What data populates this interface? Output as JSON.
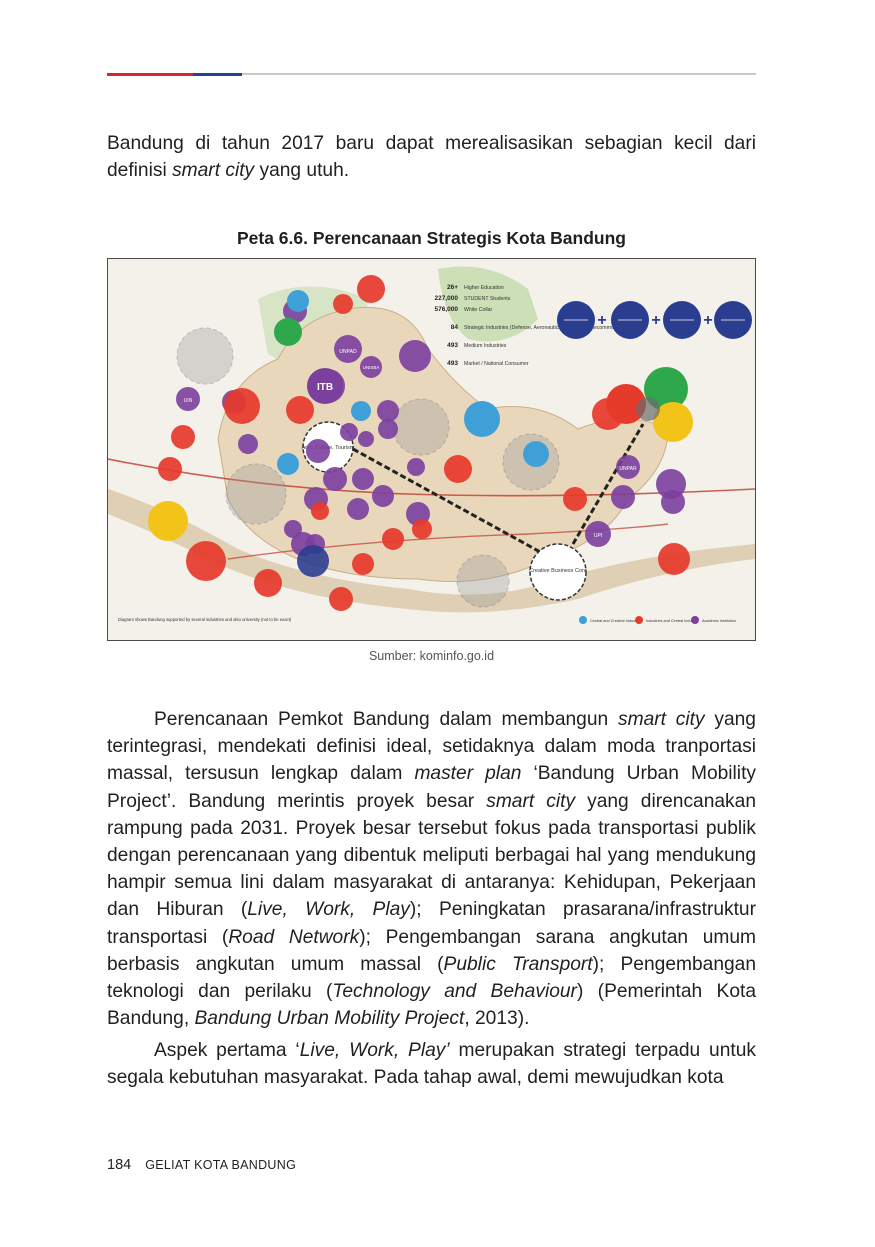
{
  "page": {
    "intro_paragraph": [
      {
        "t": "Bandung di tahun 2017 baru dapat merealisasikan sebagian kecil dari definisi ",
        "i": false
      },
      {
        "t": "smart city",
        "i": true
      },
      {
        "t": " yang utuh.",
        "i": false
      }
    ],
    "figure_caption": "Peta 6.6. Perencanaan Strategis Kota Bandung",
    "figure_source": "Sumber: kominfo.go.id",
    "paragraph_2": [
      {
        "t": "Perencanaan Pemkot Bandung dalam membangun ",
        "i": false
      },
      {
        "t": "smart city",
        "i": true
      },
      {
        "t": " yang terintegrasi, mendekati definisi ideal, setidaknya dalam moda tranportasi massal, tersusun lengkap dalam ",
        "i": false
      },
      {
        "t": "master plan",
        "i": true
      },
      {
        "t": " ‘Bandung Urban Mobility Project’. Bandung merintis proyek besar ",
        "i": false
      },
      {
        "t": "smart city",
        "i": true
      },
      {
        "t": " yang direncanakan rampung pada 2031. Proyek besar tersebut fokus pada transportasi publik dengan perencanaan yang dibentuk meliputi berbagai hal yang mendukung hampir semua lini dalam masyarakat di antaranya: Kehidupan, Pekerjaan dan Hiburan (",
        "i": false
      },
      {
        "t": "Live, Work, Play",
        "i": true
      },
      {
        "t": "); Peningkatan prasarana/infrastruktur transportasi (",
        "i": false
      },
      {
        "t": "Road Network",
        "i": true
      },
      {
        "t": "); Pengembangan sarana angkutan umum berbasis angkutan umum massal (",
        "i": false
      },
      {
        "t": "Public Transport",
        "i": true
      },
      {
        "t": "); Pengembangan teknologi dan perilaku (",
        "i": false
      },
      {
        "t": "Technology and Behaviour",
        "i": true
      },
      {
        "t": ") (Pemerintah Kota Bandung, ",
        "i": false
      },
      {
        "t": "Bandung Urban Mobility Project",
        "i": true
      },
      {
        "t": ", 2013).",
        "i": false
      }
    ],
    "paragraph_3": [
      {
        "t": "Aspek pertama ‘",
        "i": false
      },
      {
        "t": "Live, Work, Play’",
        "i": true
      },
      {
        "t": " merupakan strategi terpadu untuk segala kebutuhan masyarakat. Pada tahap awal, demi mewujudkan kota",
        "i": false
      }
    ],
    "footer": {
      "page_number": "184",
      "book_title": "GELIAT KOTA BANDUNG"
    }
  },
  "map": {
    "colors": {
      "academic": "#7b3f9e",
      "industry": "#e63a2b",
      "creative": "#3fa0d8",
      "green": "#2ea84a",
      "yellow": "#f2c41a",
      "navy": "#2b3d8f",
      "city": "#e9d7bc",
      "hills": "#bcd7a0"
    },
    "stats": [
      {
        "value": "26+",
        "label": "Higher Education"
      },
      {
        "value": "227,000",
        "label": "STUDENT Students"
      },
      {
        "value": "576,000",
        "label": "White Collar"
      },
      {
        "value": "84",
        "label": "Strategic Industries (Defense, Aeronautical, Defense, Telecommunication, etc.)"
      },
      {
        "value": "493",
        "label": "Medium Industries"
      },
      {
        "value": "493",
        "label": "Market / National Consumer"
      }
    ],
    "center_labels": {
      "arts": "Arts, Culture, Tourism",
      "creative_business": "Creative Business Core",
      "itb": "ITB",
      "unpad": "UNPAD",
      "unisba": "UNISBA",
      "unpar": "UNPAR",
      "upi": "UPI",
      "uin": "UIN"
    },
    "footnote": "Diagram shows Bandung supported by several industries and also university (not to be exact)",
    "legend": [
      {
        "label": "Central and Creative Industry",
        "color": "#3fa0d8"
      },
      {
        "label": "Industries and Central Industry",
        "color": "#e63a2b"
      },
      {
        "label": "Academic Institution",
        "color": "#7b3f9e"
      }
    ]
  }
}
